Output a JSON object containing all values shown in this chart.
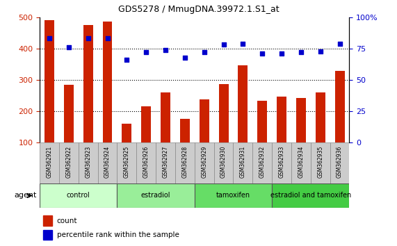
{
  "title": "GDS5278 / MmugDNA.39972.1.S1_at",
  "categories": [
    "GSM362921",
    "GSM362922",
    "GSM362923",
    "GSM362924",
    "GSM362925",
    "GSM362926",
    "GSM362927",
    "GSM362928",
    "GSM362929",
    "GSM362930",
    "GSM362931",
    "GSM362932",
    "GSM362933",
    "GSM362934",
    "GSM362935",
    "GSM362936"
  ],
  "bar_values": [
    490,
    285,
    475,
    487,
    160,
    215,
    260,
    175,
    237,
    287,
    347,
    233,
    248,
    242,
    260,
    328
  ],
  "bar_color": "#cc2200",
  "dot_values": [
    83,
    76,
    83,
    83,
    66,
    72,
    74,
    68,
    72,
    78,
    79,
    71,
    71,
    72,
    73,
    79
  ],
  "dot_color": "#0000cc",
  "ylim_left": [
    100,
    500
  ],
  "ylim_right": [
    0,
    100
  ],
  "yticks_left": [
    100,
    200,
    300,
    400,
    500
  ],
  "yticks_right": [
    0,
    25,
    50,
    75,
    100
  ],
  "ytick_labels_right": [
    "0",
    "25",
    "50",
    "75",
    "100%"
  ],
  "groups": [
    {
      "label": "control",
      "start": 0,
      "end": 3,
      "color": "#ccffcc"
    },
    {
      "label": "estradiol",
      "start": 4,
      "end": 7,
      "color": "#99ee99"
    },
    {
      "label": "tamoxifen",
      "start": 8,
      "end": 11,
      "color": "#66dd66"
    },
    {
      "label": "estradiol and tamoxifen",
      "start": 12,
      "end": 15,
      "color": "#44cc44"
    }
  ],
  "agent_label": "agent",
  "legend_count_label": "count",
  "legend_pct_label": "percentile rank within the sample",
  "bar_cell_color": "#cccccc",
  "tick_color_left": "#cc2200",
  "tick_color_right": "#0000cc"
}
